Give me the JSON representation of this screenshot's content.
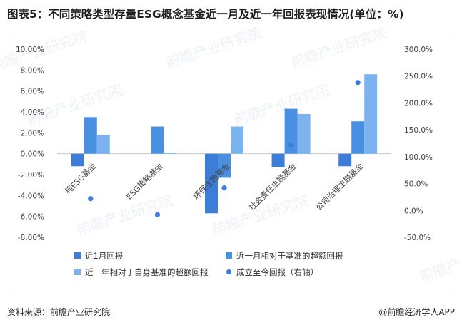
{
  "title": "图表5：不同策略类型存量ESG概念基金近一月及近一年回报表现情况(单位：%)",
  "source": "资料来源：前瞻产业研究院",
  "credit": "@前瞻经济学人APP",
  "watermark": "前瞻产业研究院",
  "chart_data": {
    "type": "bar",
    "categories": [
      "纯ESG基金",
      "ESG策略基金",
      "环保主题基金",
      "社会责任主题基金",
      "公司治理主题基金"
    ],
    "left_axis": {
      "ticks": [
        "10.00%",
        "8.00%",
        "6.00%",
        "4.00%",
        "2.00%",
        "0.00%",
        "-2.00%",
        "-4.00%",
        "-6.00%",
        "-8.00%"
      ],
      "ylim": [
        -8,
        10
      ],
      "unit": "%"
    },
    "right_axis": {
      "ticks": [
        "300.0%",
        "250.0%",
        "200.0%",
        "150.0%",
        "100.0%",
        "50.0%",
        "0.0%",
        "-50.0%"
      ],
      "ylim": [
        -50,
        300
      ],
      "unit": "%"
    },
    "series": [
      {
        "name": "近1月回报",
        "type": "bar",
        "axis": "left",
        "color": "#3b7dd8",
        "values": [
          -1.2,
          0.0,
          -5.7,
          -1.3,
          -1.2
        ]
      },
      {
        "name": "近一月相对于基准的超额回报",
        "type": "bar",
        "axis": "left",
        "color": "#4a90e2",
        "values": [
          3.5,
          2.6,
          -2.3,
          4.3,
          3.1
        ]
      },
      {
        "name": "近一年相对于自身基准的超额回报",
        "type": "bar",
        "axis": "left",
        "color": "#7cb2ee",
        "values": [
          1.8,
          0.1,
          2.6,
          3.8,
          7.6
        ]
      },
      {
        "name": "成立至今回报（右轴）",
        "type": "scatter",
        "axis": "right",
        "color": "#3b7dd8",
        "values": [
          22,
          -8,
          42,
          122,
          238
        ]
      }
    ],
    "legend_position": "bottom"
  }
}
